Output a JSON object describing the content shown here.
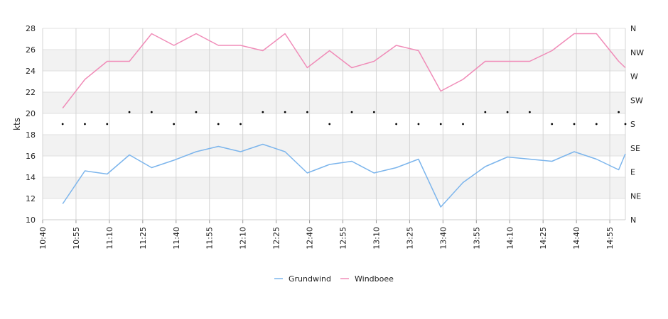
{
  "chart_data": {
    "type": "line",
    "ylabel": "kts",
    "ylim": [
      10,
      28
    ],
    "yticks": [
      10,
      12,
      14,
      16,
      18,
      20,
      22,
      24,
      26,
      28
    ],
    "x_range_minutes": [
      0,
      262
    ],
    "xticks": [
      {
        "label": "10:40",
        "min": 0
      },
      {
        "label": "10:55",
        "min": 15
      },
      {
        "label": "11:10",
        "min": 30
      },
      {
        "label": "11:25",
        "min": 45
      },
      {
        "label": "11:40",
        "min": 60
      },
      {
        "label": "11:55",
        "min": 75
      },
      {
        "label": "12:10",
        "min": 90
      },
      {
        "label": "12:25",
        "min": 105
      },
      {
        "label": "12:40",
        "min": 120
      },
      {
        "label": "12:55",
        "min": 135
      },
      {
        "label": "13:10",
        "min": 150
      },
      {
        "label": "13:25",
        "min": 165
      },
      {
        "label": "13:40",
        "min": 180
      },
      {
        "label": "13:55",
        "min": 195
      },
      {
        "label": "14:10",
        "min": 210
      },
      {
        "label": "14:25",
        "min": 225
      },
      {
        "label": "14:40",
        "min": 240
      },
      {
        "label": "14:55",
        "min": 255
      }
    ],
    "direction_axis": [
      "N",
      "NE",
      "E",
      "SE",
      "S",
      "SW",
      "W",
      "NW",
      "N"
    ],
    "grid": true,
    "legend_position": "bottom",
    "series": [
      {
        "name": "Grundwind",
        "color": "#7cb5ec",
        "points": [
          [
            9,
            11.5
          ],
          [
            19,
            14.6
          ],
          [
            29,
            14.3
          ],
          [
            39,
            16.1
          ],
          [
            49,
            14.9
          ],
          [
            59,
            15.6
          ],
          [
            69,
            16.4
          ],
          [
            79,
            16.9
          ],
          [
            89,
            16.4
          ],
          [
            99,
            17.1
          ],
          [
            109,
            16.4
          ],
          [
            119,
            14.4
          ],
          [
            129,
            15.2
          ],
          [
            139,
            15.5
          ],
          [
            149,
            14.4
          ],
          [
            159,
            14.9
          ],
          [
            169,
            15.7
          ],
          [
            179,
            11.2
          ],
          [
            189,
            13.5
          ],
          [
            199,
            15.0
          ],
          [
            209,
            15.9
          ],
          [
            219,
            15.7
          ],
          [
            229,
            15.5
          ],
          [
            239,
            16.4
          ],
          [
            249,
            15.7
          ],
          [
            259,
            14.7
          ],
          [
            262,
            16.2
          ]
        ]
      },
      {
        "name": "Windboee",
        "color": "#f08cb8",
        "points": [
          [
            9,
            20.5
          ],
          [
            19,
            23.2
          ],
          [
            29,
            24.9
          ],
          [
            39,
            24.9
          ],
          [
            49,
            27.5
          ],
          [
            59,
            26.4
          ],
          [
            69,
            27.5
          ],
          [
            79,
            26.4
          ],
          [
            89,
            26.4
          ],
          [
            99,
            25.9
          ],
          [
            109,
            27.5
          ],
          [
            119,
            24.3
          ],
          [
            129,
            25.9
          ],
          [
            139,
            24.3
          ],
          [
            149,
            24.9
          ],
          [
            159,
            26.4
          ],
          [
            169,
            25.9
          ],
          [
            179,
            22.1
          ],
          [
            189,
            23.2
          ],
          [
            199,
            24.9
          ],
          [
            209,
            24.9
          ],
          [
            219,
            24.9
          ],
          [
            229,
            25.9
          ],
          [
            239,
            27.5
          ],
          [
            249,
            27.5
          ],
          [
            259,
            24.9
          ],
          [
            262,
            24.3
          ]
        ]
      }
    ],
    "direction_points": [
      [
        9,
        "S"
      ],
      [
        19,
        "S"
      ],
      [
        29,
        "S"
      ],
      [
        39,
        "SSW"
      ],
      [
        49,
        "SSW"
      ],
      [
        59,
        "S"
      ],
      [
        69,
        "SSW"
      ],
      [
        79,
        "S"
      ],
      [
        89,
        "S"
      ],
      [
        99,
        "SSW"
      ],
      [
        109,
        "SSW"
      ],
      [
        119,
        "SSW"
      ],
      [
        129,
        "S"
      ],
      [
        139,
        "SSW"
      ],
      [
        149,
        "SSW"
      ],
      [
        159,
        "S"
      ],
      [
        169,
        "S"
      ],
      [
        179,
        "S"
      ],
      [
        189,
        "S"
      ],
      [
        199,
        "SSW"
      ],
      [
        209,
        "SSW"
      ],
      [
        219,
        "SSW"
      ],
      [
        229,
        "S"
      ],
      [
        239,
        "S"
      ],
      [
        249,
        "S"
      ],
      [
        259,
        "SSW"
      ],
      [
        262,
        "S"
      ]
    ]
  },
  "legend": {
    "items": [
      {
        "label": "Grundwind",
        "color": "#7cb5ec"
      },
      {
        "label": "Windboee",
        "color": "#f08cb8"
      }
    ]
  }
}
